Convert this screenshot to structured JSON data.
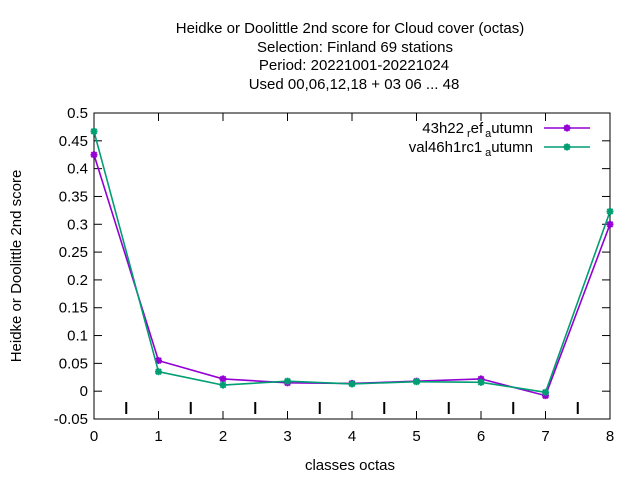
{
  "chart_data": {
    "type": "line",
    "title_lines": [
      "Heidke or Doolittle 2nd score  for Cloud cover (octas)",
      "Selection: Finland     69 stations",
      "Period: 20221001-20221024",
      "Used  00,06,12,18  + 03 06 ... 48"
    ],
    "xlabel": "classes octas",
    "ylabel": "Heidke or Doolittle 2nd score",
    "x": [
      0,
      1,
      2,
      3,
      4,
      5,
      6,
      7,
      8
    ],
    "xlim": [
      0,
      8
    ],
    "ylim": [
      -0.05,
      0.5
    ],
    "x_ticks": [
      "0",
      "1",
      "2",
      "3",
      "4",
      "5",
      "6",
      "7",
      "8"
    ],
    "y_ticks": [
      "-0.05",
      "0",
      "0.05",
      "0.1",
      "0.15",
      "0.2",
      "0.25",
      "0.3",
      "0.35",
      "0.4",
      "0.45",
      "0.5"
    ],
    "grid": false,
    "legend_position": "top-right",
    "series": [
      {
        "name": "43h22",
        "name_sub1": "r",
        "name_mid": "ef",
        "name_sub2": "a",
        "name_end": "utumn",
        "color": "#9400d3",
        "values": [
          0.425,
          0.055,
          0.022,
          0.015,
          0.014,
          0.018,
          0.022,
          -0.008,
          0.3
        ]
      },
      {
        "name": "val46h1rc1",
        "name_sub1": "a",
        "name_end": "utumn",
        "color": "#009e73",
        "values": [
          0.467,
          0.035,
          0.011,
          0.018,
          0.013,
          0.017,
          0.016,
          -0.002,
          0.323
        ]
      }
    ]
  }
}
